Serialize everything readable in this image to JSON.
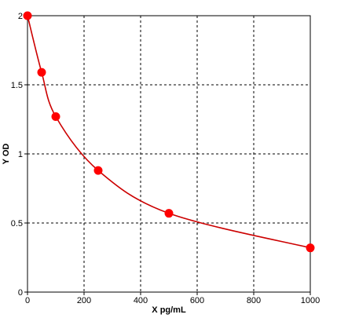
{
  "chart_data": {
    "type": "line",
    "title": "",
    "xlabel": "X pg/mL",
    "ylabel": "Y OD",
    "xlim": [
      0,
      1000
    ],
    "ylim": [
      0,
      2
    ],
    "grid": true,
    "grid_style": "dashed",
    "x_ticks": [
      0,
      200,
      400,
      600,
      800,
      1000
    ],
    "y_ticks": [
      0,
      0.5,
      1,
      1.5,
      2
    ],
    "x_tick_labels": [
      "0",
      "200",
      "400",
      "600",
      "800",
      "1000"
    ],
    "y_tick_labels": [
      "0",
      "0.5",
      "1",
      "1.5",
      "2"
    ],
    "series": [
      {
        "color": "#ff0000",
        "line_color": "#cc0000",
        "x": [
          0,
          50,
          100,
          250,
          500,
          1000
        ],
        "y": [
          2.0,
          1.59,
          1.27,
          0.88,
          0.57,
          0.32
        ]
      }
    ]
  }
}
